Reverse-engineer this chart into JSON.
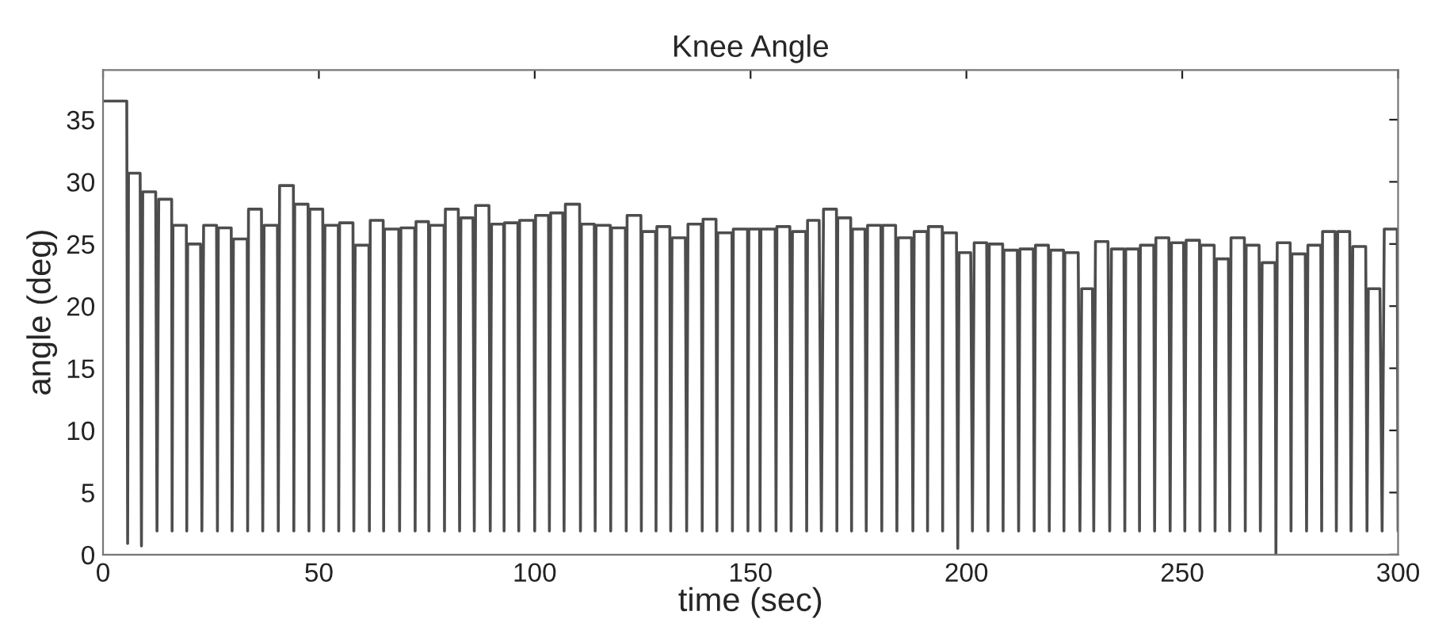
{
  "chart_data": {
    "type": "line",
    "title": "Knee Angle",
    "xlabel": "time (sec)",
    "ylabel": "angle (deg)",
    "color": "#4d4d4d",
    "line_style": "solid",
    "grid": false,
    "xlim": [
      0,
      300
    ],
    "xticks": [
      0,
      50,
      100,
      150,
      200,
      250,
      300
    ],
    "ylim": [
      0,
      39
    ],
    "yticks": [
      0,
      5,
      10,
      15,
      20,
      25,
      30,
      35
    ],
    "x": [
      0,
      5.5,
      5.7,
      5.9,
      8.6,
      8.9,
      9.2,
      12.2,
      12.5,
      12.9,
      15.9,
      16.0,
      16.2,
      19.3,
      19.4,
      19.6,
      22.6,
      22.9,
      23.3,
      26.3,
      26.5,
      26.7,
      29.7,
      29.9,
      30.2,
      33.4,
      33.5,
      33.7,
      36.7,
      37.0,
      37.3,
      40.4,
      40.6,
      40.9,
      44.1,
      44.2,
      44.4,
      47.5,
      47.7,
      47.9,
      50.9,
      51.1,
      51.4,
      54.5,
      54.6,
      54.8,
      57.9,
      58.1,
      58.4,
      61.6,
      61.7,
      61.9,
      64.9,
      65.0,
      65.2,
      68.5,
      68.7,
      69.0,
      72.2,
      72.3,
      72.5,
      75.4,
      75.5,
      75.7,
      79.0,
      79.1,
      79.3,
      82.3,
      82.6,
      82.9,
      85.7,
      86.0,
      86.3,
      89.4,
      89.7,
      90.0,
      92.8,
      92.9,
      93.0,
      96.1,
      96.3,
      96.5,
      99.8,
      100.0,
      100.2,
      103.2,
      103.4,
      103.7,
      106.5,
      106.8,
      107.1,
      110.4,
      110.6,
      110.8,
      113.8,
      114.0,
      114.2,
      117.5,
      117.6,
      117.8,
      121.0,
      121.2,
      121.4,
      124.6,
      124.7,
      124.9,
      128.0,
      128.1,
      128.3,
      131.3,
      131.5,
      131.8,
      134.9,
      135.2,
      135.5,
      138.6,
      138.8,
      139.0,
      142.0,
      142.2,
      142.4,
      145.7,
      145.8,
      146.0,
      149.3,
      149.4,
      149.6,
      152.1,
      152.2,
      152.4,
      155.7,
      155.9,
      156.1,
      159.1,
      159.4,
      159.7,
      162.8,
      163.0,
      163.2,
      165.9,
      166.4,
      166.9,
      169.9,
      170.0,
      170.2,
      173.2,
      173.4,
      173.6,
      176.5,
      176.8,
      177.1,
      180.2,
      180.4,
      180.6,
      183.6,
      183.9,
      184.2,
      187.3,
      187.6,
      187.9,
      190.9,
      191.0,
      191.2,
      194.4,
      194.5,
      194.6,
      197.7,
      198.0,
      198.3,
      201.0,
      201.4,
      201.8,
      204.7,
      205.0,
      205.3,
      208.4,
      208.5,
      208.7,
      211.8,
      212.1,
      212.4,
      215.5,
      215.7,
      216.0,
      219.0,
      219.2,
      219.5,
      222.5,
      222.6,
      222.8,
      225.9,
      226.3,
      226.7,
      229.2,
      229.5,
      229.9,
      232.8,
      233.2,
      233.6,
      236.5,
      236.7,
      236.9,
      239.9,
      240.1,
      240.3,
      243.4,
      243.6,
      243.9,
      246.9,
      247.2,
      247.5,
      250.3,
      250.6,
      250.9,
      254.0,
      254.1,
      254.3,
      257.4,
      257.6,
      257.9,
      260.7,
      261.0,
      261.3,
      264.4,
      264.6,
      264.8,
      267.8,
      268.1,
      268.5,
      271.5,
      271.7,
      272.0,
      275.0,
      275.2,
      275.4,
      278.5,
      278.8,
      279.1,
      282.1,
      282.3,
      282.5,
      285.4,
      285.7,
      286.0,
      288.8,
      289.1,
      289.5,
      292.5,
      292.8,
      293.1,
      295.8,
      296.3,
      296.8,
      299.8,
      300
    ],
    "values": [
      36.5,
      36.5,
      0.9,
      30.7,
      30.7,
      0.7,
      29.2,
      29.2,
      1.9,
      28.6,
      28.6,
      1.9,
      26.5,
      26.5,
      1.9,
      25.0,
      25.0,
      1.9,
      26.5,
      26.5,
      1.9,
      26.3,
      26.3,
      1.9,
      25.4,
      25.4,
      1.9,
      27.8,
      27.8,
      1.9,
      26.5,
      26.5,
      1.9,
      29.7,
      29.7,
      1.9,
      28.2,
      28.2,
      1.9,
      27.8,
      27.8,
      1.9,
      26.5,
      26.5,
      1.9,
      26.7,
      26.7,
      1.9,
      24.9,
      24.9,
      1.9,
      26.9,
      26.9,
      1.9,
      26.2,
      26.2,
      1.9,
      26.3,
      26.3,
      1.9,
      26.8,
      26.8,
      1.9,
      26.5,
      26.5,
      1.9,
      27.8,
      27.8,
      1.9,
      27.1,
      27.1,
      1.9,
      28.1,
      28.1,
      1.9,
      26.6,
      26.6,
      1.9,
      26.7,
      26.7,
      1.9,
      26.9,
      26.9,
      1.9,
      27.3,
      27.3,
      1.9,
      27.5,
      27.5,
      1.9,
      28.2,
      28.2,
      1.9,
      26.6,
      26.6,
      1.9,
      26.5,
      26.5,
      1.9,
      26.3,
      26.3,
      1.9,
      27.3,
      27.3,
      1.9,
      26.0,
      26.0,
      1.9,
      26.4,
      26.4,
      1.9,
      25.5,
      25.5,
      1.9,
      26.6,
      26.6,
      1.9,
      27.0,
      27.0,
      1.9,
      25.9,
      25.9,
      1.9,
      26.2,
      26.2,
      1.9,
      26.2,
      26.2,
      1.9,
      26.2,
      26.2,
      1.9,
      26.4,
      26.4,
      1.9,
      26.0,
      26.0,
      1.9,
      26.9,
      26.9,
      1.9,
      27.8,
      27.8,
      1.9,
      27.1,
      27.1,
      1.9,
      26.2,
      26.2,
      1.9,
      26.5,
      26.5,
      1.9,
      26.5,
      26.5,
      1.9,
      25.5,
      25.5,
      1.9,
      26.0,
      26.0,
      1.9,
      26.4,
      26.4,
      1.9,
      25.9,
      25.9,
      0.5,
      24.3,
      24.3,
      1.9,
      25.1,
      25.1,
      1.9,
      25.0,
      25.0,
      1.9,
      24.5,
      24.5,
      1.9,
      24.6,
      24.6,
      1.9,
      24.9,
      24.9,
      1.9,
      24.5,
      24.5,
      1.9,
      24.3,
      24.3,
      1.9,
      21.4,
      21.4,
      1.9,
      25.2,
      25.2,
      1.9,
      24.6,
      24.6,
      1.9,
      24.6,
      24.6,
      1.9,
      24.9,
      24.9,
      1.9,
      25.5,
      25.5,
      1.9,
      25.1,
      25.1,
      1.9,
      25.3,
      25.3,
      1.9,
      24.9,
      24.9,
      1.9,
      23.8,
      23.8,
      1.9,
      25.5,
      25.5,
      1.9,
      24.9,
      24.9,
      1.9,
      23.5,
      23.5,
      0,
      25.1,
      25.1,
      1.9,
      24.2,
      24.2,
      1.9,
      24.9,
      24.9,
      1.9,
      26.0,
      26.0,
      1.9,
      26.0,
      26.0,
      1.9,
      24.8,
      24.8,
      1.9,
      21.4,
      21.4,
      1.9,
      26.2,
      26.2,
      1.9
    ]
  }
}
